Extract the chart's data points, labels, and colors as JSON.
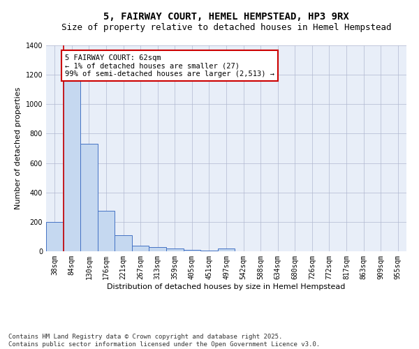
{
  "title": "5, FAIRWAY COURT, HEMEL HEMPSTEAD, HP3 9RX",
  "subtitle": "Size of property relative to detached houses in Hemel Hempstead",
  "xlabel": "Distribution of detached houses by size in Hemel Hempstead",
  "ylabel": "Number of detached properties",
  "footer_line1": "Contains HM Land Registry data © Crown copyright and database right 2025.",
  "footer_line2": "Contains public sector information licensed under the Open Government Licence v3.0.",
  "annotation_line1": "5 FAIRWAY COURT: 62sqm",
  "annotation_line2": "← 1% of detached houses are smaller (27)",
  "annotation_line3": "99% of semi-detached houses are larger (2,513) →",
  "bar_color": "#c5d8f0",
  "bar_edge_color": "#4472c4",
  "property_line_color": "#cc0000",
  "annotation_box_color": "#cc0000",
  "background_color": "#e8eef8",
  "categories": [
    "38sqm",
    "84sqm",
    "130sqm",
    "176sqm",
    "221sqm",
    "267sqm",
    "313sqm",
    "359sqm",
    "405sqm",
    "451sqm",
    "497sqm",
    "542sqm",
    "588sqm",
    "634sqm",
    "680sqm",
    "726sqm",
    "772sqm",
    "817sqm",
    "863sqm",
    "909sqm",
    "955sqm"
  ],
  "values": [
    197,
    1160,
    730,
    275,
    108,
    37,
    30,
    20,
    8,
    3,
    20,
    0,
    0,
    0,
    0,
    0,
    0,
    0,
    0,
    0,
    0
  ],
  "ylim": [
    0,
    1400
  ],
  "yticks": [
    0,
    200,
    400,
    600,
    800,
    1000,
    1200,
    1400
  ],
  "title_fontsize": 10,
  "subtitle_fontsize": 9,
  "axis_label_fontsize": 8,
  "tick_fontsize": 7,
  "annotation_fontsize": 7.5,
  "footer_fontsize": 6.5
}
